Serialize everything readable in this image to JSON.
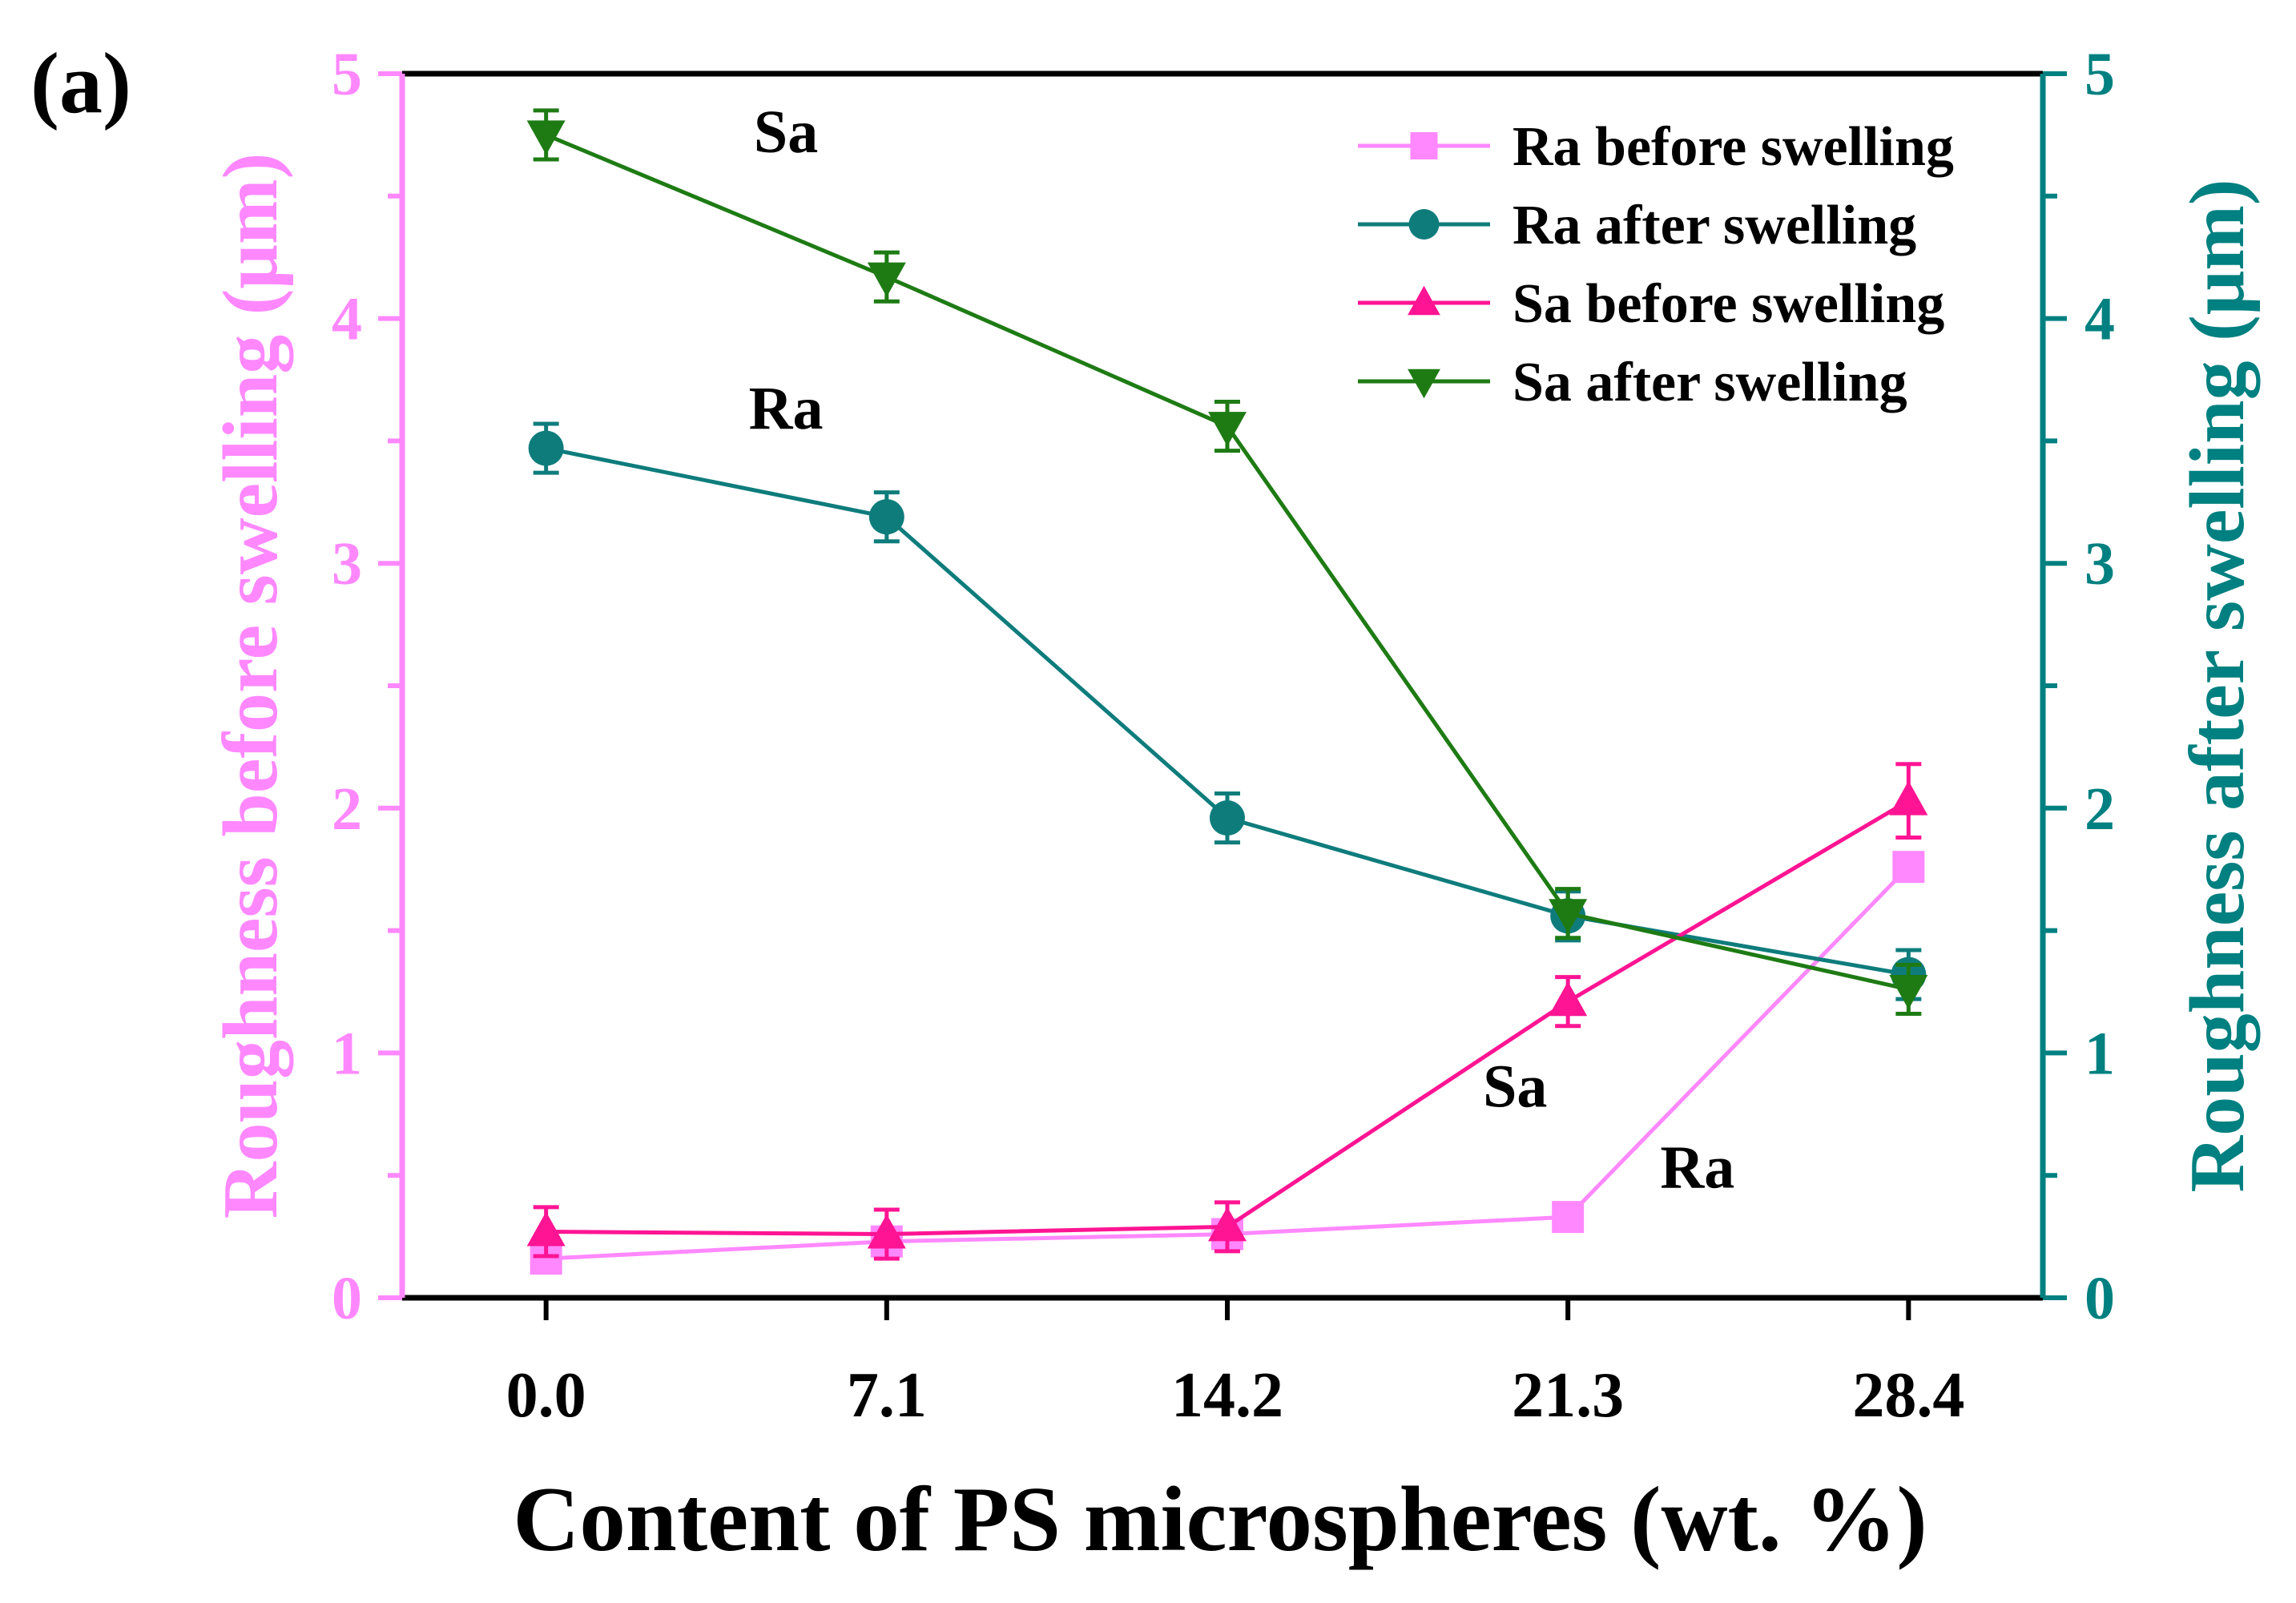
{
  "panel_label": "(a)",
  "colors": {
    "left_axis": "#ff88ff",
    "right_axis": "#008080",
    "ra_before": "#ff88ff",
    "ra_after": "#0f7c7c",
    "sa_before": "#ff1493",
    "sa_after": "#1e7b14"
  },
  "chart_data": {
    "type": "line",
    "title": "",
    "xlabel": "Content of PS microspheres (wt. %)",
    "ylabel_left": "Roughness before swelling (μm)",
    "ylabel_right": "Roughness after swelling (μm)",
    "categories": [
      "0.0",
      "7.1",
      "14.2",
      "21.3",
      "28.4"
    ],
    "x": [
      0.0,
      7.1,
      14.2,
      21.3,
      28.4
    ],
    "xlim": [
      -3.0,
      31.2
    ],
    "ylim_left": [
      0,
      5
    ],
    "ylim_right": [
      0,
      5
    ],
    "yticks_left": [
      "0",
      "1",
      "2",
      "3",
      "4",
      "5"
    ],
    "yticks_right": [
      "0",
      "1",
      "2",
      "3",
      "4",
      "5"
    ],
    "legend_position": "top-right",
    "series": [
      {
        "name": "Ra before swelling",
        "axis": "left",
        "marker": "square",
        "color_key": "ra_before",
        "values": [
          0.16,
          0.23,
          0.26,
          0.33,
          1.76
        ],
        "errors": [
          0.03,
          0.03,
          0.03,
          0.02,
          0.05
        ]
      },
      {
        "name": "Ra after swelling",
        "axis": "right",
        "marker": "circle",
        "color_key": "ra_after",
        "values": [
          3.47,
          3.19,
          1.96,
          1.56,
          1.32
        ],
        "errors": [
          0.1,
          0.1,
          0.1,
          0.1,
          0.1
        ]
      },
      {
        "name": "Sa before swelling",
        "axis": "left",
        "marker": "triangle-up",
        "color_key": "sa_before",
        "values": [
          0.27,
          0.26,
          0.29,
          1.21,
          2.03
        ],
        "errors": [
          0.1,
          0.1,
          0.1,
          0.1,
          0.15
        ]
      },
      {
        "name": "Sa after swelling",
        "axis": "right",
        "marker": "triangle-down",
        "color_key": "sa_after",
        "values": [
          4.75,
          4.17,
          3.56,
          1.57,
          1.26
        ],
        "errors": [
          0.1,
          0.1,
          0.1,
          0.1,
          0.1
        ]
      }
    ],
    "annotations": [
      {
        "text": "Sa",
        "x": 5.0,
        "y": 4.68
      },
      {
        "text": "Ra",
        "x": 5.0,
        "y": 3.55
      },
      {
        "text": "Sa",
        "x": 20.2,
        "y": 0.78
      },
      {
        "text": "Ra",
        "x": 24.0,
        "y": 0.45
      }
    ]
  }
}
